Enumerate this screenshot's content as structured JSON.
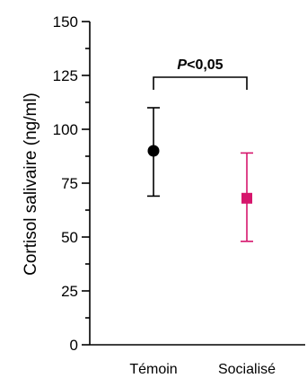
{
  "chart_data": {
    "type": "scatter",
    "title": "",
    "xlabel": "",
    "ylabel": "Cortisol salivaire (ng/ml)",
    "ylim": [
      0,
      150
    ],
    "yticks": [
      0,
      25,
      50,
      75,
      100,
      125,
      150
    ],
    "categories": [
      "Témoin",
      "Socialisé"
    ],
    "grid": false,
    "series": [
      {
        "category": "Témoin",
        "value": 90,
        "err_low": 69,
        "err_high": 110,
        "marker": "circle",
        "color": "#000000"
      },
      {
        "category": "Socialisé",
        "value": 68,
        "err_low": 48,
        "err_high": 89,
        "marker": "square",
        "color": "#d6156c"
      }
    ],
    "annotation": {
      "italic_part": "P",
      "rest": "<0,05",
      "between": [
        "Témoin",
        "Socialisé"
      ]
    }
  }
}
